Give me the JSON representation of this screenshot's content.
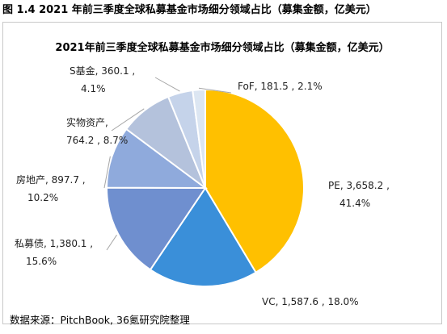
{
  "figure_caption": "图 1.4 2021 年前三季度全球私募基金市场细分领域占比（募集金额，亿美元）",
  "source_note": "数据来源：PitchBook, 36氪研究院整理",
  "colors": {
    "PE": "#FFC000",
    "VC": "#3A8FD9",
    "私募债": "#6F8FCF",
    "房地产": "#8FAADC",
    "实物资产": "#B4C2DC",
    "S基金": "#C5D3EA",
    "FoF": "#DCE6F2"
  },
  "chart_data": {
    "type": "pie",
    "title": "2021年前三季度全球私募基金市场细分领域占比（募集金额，亿美元）",
    "slices": [
      {
        "name": "PE",
        "value": 3658.2,
        "percent": 41.4,
        "label_lines": [
          "PE, 3,658.2 ,",
          "41.4%"
        ]
      },
      {
        "name": "VC",
        "value": 1587.6,
        "percent": 18.0,
        "label_lines": [
          "VC, 1,587.6 , 18.0%"
        ]
      },
      {
        "name": "私募债",
        "value": 1380.1,
        "percent": 15.6,
        "label_lines": [
          "私募债, 1,380.1 ,",
          "15.6%"
        ]
      },
      {
        "name": "房地产",
        "value": 897.7,
        "percent": 10.2,
        "label_lines": [
          "房地产, 897.7 ,",
          "10.2%"
        ]
      },
      {
        "name": "实物资产",
        "value": 764.2,
        "percent": 8.7,
        "label_lines": [
          "实物资产,",
          "764.2 , 8.7%"
        ]
      },
      {
        "name": "S基金",
        "value": 360.1,
        "percent": 4.1,
        "label_lines": [
          "S基金, 360.1 ,",
          "4.1%"
        ]
      },
      {
        "name": "FoF",
        "value": 181.5,
        "percent": 2.1,
        "label_lines": [
          "FoF, 181.5 , 2.1%"
        ]
      }
    ],
    "start_angle": "12 o'clock",
    "direction": "clockwise",
    "legend": "none"
  }
}
